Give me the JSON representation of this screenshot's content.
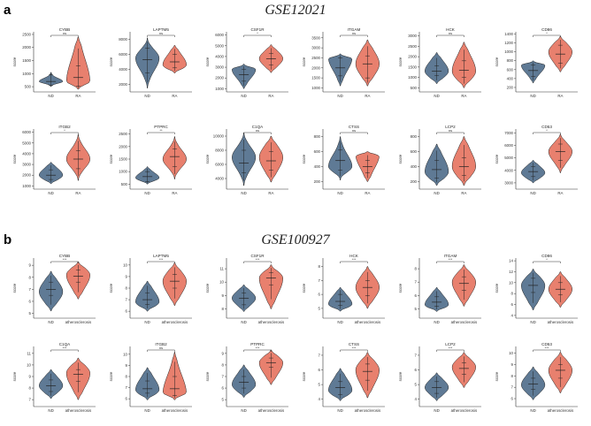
{
  "figure": {
    "panel_a_label": "a",
    "panel_b_label": "b",
    "panel_a_title": "GSE12021",
    "panel_b_title": "GSE100927",
    "y_axis_label": "score"
  },
  "colors": {
    "control": "#5f7a95",
    "case": "#e8806e",
    "outline": "#222222"
  },
  "chart_data": [
    {
      "panel": "a",
      "type": "violin",
      "title": "CYBB",
      "categories": [
        "ND",
        "RA"
      ],
      "significance": "ns",
      "yticks": [
        500,
        1000,
        1500,
        2000,
        2500
      ],
      "ylim": [
        300,
        2600
      ],
      "groups": [
        {
          "min": 500,
          "q1": 550,
          "median": 700,
          "q3": 950,
          "max": 1050,
          "peak": 700,
          "spread": 0.35
        },
        {
          "min": 400,
          "q1": 520,
          "median": 850,
          "q3": 1300,
          "max": 2400,
          "peak": 650,
          "spread": 0.5
        }
      ]
    },
    {
      "panel": "a",
      "type": "violin",
      "title": "LAPTM5",
      "categories": [
        "ND",
        "RA"
      ],
      "significance": "ns",
      "yticks": [
        2000,
        4000,
        6000,
        8000
      ],
      "ylim": [
        1000,
        9000
      ],
      "groups": [
        {
          "min": 1500,
          "q1": 3500,
          "median": 5300,
          "q3": 6800,
          "max": 8200,
          "peak": 5500,
          "spread": 0.4
        },
        {
          "min": 3500,
          "q1": 4200,
          "median": 5000,
          "q3": 6000,
          "max": 7200,
          "peak": 4600,
          "spread": 0.5
        }
      ]
    },
    {
      "panel": "a",
      "type": "violin",
      "title": "CSF1R",
      "categories": [
        "ND",
        "RA"
      ],
      "significance": "*",
      "yticks": [
        1000,
        2000,
        3000,
        4000,
        5000,
        6000
      ],
      "ylim": [
        700,
        6300
      ],
      "groups": [
        {
          "min": 1000,
          "q1": 1700,
          "median": 2300,
          "q3": 2800,
          "max": 3300,
          "peak": 2800,
          "spread": 0.45
        },
        {
          "min": 2500,
          "q1": 3200,
          "median": 3800,
          "q3": 4300,
          "max": 5100,
          "peak": 3800,
          "spread": 0.5
        }
      ]
    },
    {
      "panel": "a",
      "type": "violin",
      "title": "ITGAM",
      "categories": [
        "ND",
        "RA"
      ],
      "significance": "ns",
      "yticks": [
        1000,
        1500,
        2000,
        2500,
        3000,
        3500
      ],
      "ylim": [
        800,
        3800
      ],
      "groups": [
        {
          "min": 1100,
          "q1": 1600,
          "median": 2000,
          "q3": 2500,
          "max": 2700,
          "peak": 2500,
          "spread": 0.45
        },
        {
          "min": 1100,
          "q1": 1500,
          "median": 2200,
          "q3": 2600,
          "max": 3400,
          "peak": 2200,
          "spread": 0.5
        }
      ]
    },
    {
      "panel": "a",
      "type": "violin",
      "title": "HCK",
      "categories": [
        "ND",
        "RA"
      ],
      "significance": "ns",
      "yticks": [
        500,
        1000,
        1500,
        2000,
        2500,
        3000
      ],
      "ylim": [
        300,
        3200
      ],
      "groups": [
        {
          "min": 700,
          "q1": 1100,
          "median": 1300,
          "q3": 1550,
          "max": 2200,
          "peak": 1300,
          "spread": 0.5
        },
        {
          "min": 500,
          "q1": 1000,
          "median": 1350,
          "q3": 1800,
          "max": 2700,
          "peak": 1300,
          "spread": 0.5
        }
      ]
    },
    {
      "panel": "a",
      "type": "violin",
      "title": "CD86",
      "categories": [
        "ND",
        "RA"
      ],
      "significance": "*",
      "yticks": [
        200,
        400,
        600,
        800,
        1000,
        1200,
        1400
      ],
      "ylim": [
        100,
        1450
      ],
      "groups": [
        {
          "min": 300,
          "q1": 450,
          "median": 580,
          "q3": 700,
          "max": 800,
          "peak": 700,
          "spread": 0.45
        },
        {
          "min": 550,
          "q1": 750,
          "median": 950,
          "q3": 1150,
          "max": 1350,
          "peak": 1000,
          "spread": 0.5
        }
      ]
    },
    {
      "panel": "a",
      "type": "violin",
      "title": "ITGB2",
      "categories": [
        "ND",
        "RA"
      ],
      "significance": "*",
      "yticks": [
        1000,
        2000,
        3000,
        4000,
        5000,
        6000
      ],
      "ylim": [
        700,
        6300
      ],
      "groups": [
        {
          "min": 1200,
          "q1": 1600,
          "median": 2000,
          "q3": 2500,
          "max": 3200,
          "peak": 2000,
          "spread": 0.5
        },
        {
          "min": 1500,
          "q1": 2600,
          "median": 3500,
          "q3": 4300,
          "max": 5800,
          "peak": 3500,
          "spread": 0.4
        }
      ]
    },
    {
      "panel": "a",
      "type": "violin",
      "title": "PTPRC",
      "categories": [
        "ND",
        "RA"
      ],
      "significance": "**",
      "yticks": [
        500,
        1000,
        1500,
        2000,
        2500
      ],
      "ylim": [
        300,
        2700
      ],
      "groups": [
        {
          "min": 500,
          "q1": 600,
          "median": 800,
          "q3": 1000,
          "max": 1200,
          "peak": 750,
          "spread": 0.45
        },
        {
          "min": 700,
          "q1": 1200,
          "median": 1600,
          "q3": 1900,
          "max": 2400,
          "peak": 1500,
          "spread": 0.4
        }
      ]
    },
    {
      "panel": "a",
      "type": "violin",
      "title": "C1QA",
      "categories": [
        "ND",
        "RA"
      ],
      "significance": "ns",
      "yticks": [
        4000,
        6000,
        8000,
        10000
      ],
      "ylim": [
        2500,
        11000
      ],
      "groups": [
        {
          "min": 3000,
          "q1": 4800,
          "median": 6200,
          "q3": 8000,
          "max": 10500,
          "peak": 7000,
          "spread": 0.4
        },
        {
          "min": 3500,
          "q1": 5200,
          "median": 6500,
          "q3": 7800,
          "max": 10000,
          "peak": 7000,
          "spread": 0.5
        }
      ]
    },
    {
      "panel": "a",
      "type": "violin",
      "title": "CTSS",
      "categories": [
        "ND",
        "RA"
      ],
      "significance": "ns",
      "yticks": [
        200,
        400,
        600,
        800
      ],
      "ylim": [
        100,
        900
      ],
      "groups": [
        {
          "min": 220,
          "q1": 350,
          "median": 480,
          "q3": 620,
          "max": 800,
          "peak": 400,
          "spread": 0.4
        },
        {
          "min": 200,
          "q1": 320,
          "median": 400,
          "q3": 480,
          "max": 600,
          "peak": 560,
          "spread": 0.5
        }
      ]
    },
    {
      "panel": "a",
      "type": "violin",
      "title": "LCP2",
      "categories": [
        "ND",
        "RA"
      ],
      "significance": "ns",
      "yticks": [
        200,
        400,
        600,
        800
      ],
      "ylim": [
        100,
        900
      ],
      "groups": [
        {
          "min": 150,
          "q1": 250,
          "median": 360,
          "q3": 480,
          "max": 700,
          "peak": 330,
          "spread": 0.5
        },
        {
          "min": 150,
          "q1": 280,
          "median": 400,
          "q3": 520,
          "max": 800,
          "peak": 400,
          "spread": 0.5
        }
      ]
    },
    {
      "panel": "a",
      "type": "violin",
      "title": "CD53",
      "categories": [
        "ND",
        "RA"
      ],
      "significance": "*",
      "yticks": [
        3000,
        4000,
        5000,
        6000,
        7000
      ],
      "ylim": [
        2500,
        7300
      ],
      "groups": [
        {
          "min": 3000,
          "q1": 3500,
          "median": 3900,
          "q3": 4300,
          "max": 4800,
          "peak": 3800,
          "spread": 0.5
        },
        {
          "min": 3800,
          "q1": 4800,
          "median": 5500,
          "q3": 6100,
          "max": 6900,
          "peak": 5500,
          "spread": 0.45
        }
      ]
    },
    {
      "panel": "b",
      "type": "violin",
      "title": "CYBB",
      "categories": [
        "ND",
        "atherosclerosis"
      ],
      "significance": "***",
      "yticks": [
        5,
        6,
        7,
        8,
        9
      ],
      "ylim": [
        4.6,
        9.6
      ],
      "groups": [
        {
          "min": 5.2,
          "q1": 6.5,
          "median": 7.0,
          "q3": 7.6,
          "max": 8.5,
          "peak": 6.8,
          "spread": 0.5
        },
        {
          "min": 6.2,
          "q1": 7.6,
          "median": 8.1,
          "q3": 8.6,
          "max": 9.3,
          "peak": 8.2,
          "spread": 0.5
        }
      ]
    },
    {
      "panel": "b",
      "type": "violin",
      "title": "LAPTM5",
      "categories": [
        "ND",
        "atherosclerosis"
      ],
      "significance": "***",
      "yticks": [
        6,
        7,
        8,
        9,
        10
      ],
      "ylim": [
        5.4,
        10.6
      ],
      "groups": [
        {
          "min": 6.0,
          "q1": 6.6,
          "median": 7.0,
          "q3": 7.6,
          "max": 8.6,
          "peak": 6.8,
          "spread": 0.5
        },
        {
          "min": 6.5,
          "q1": 8.0,
          "median": 8.6,
          "q3": 9.2,
          "max": 10.2,
          "peak": 8.6,
          "spread": 0.5
        }
      ]
    },
    {
      "panel": "b",
      "type": "violin",
      "title": "CSF1R",
      "categories": [
        "ND",
        "atherosclerosis"
      ],
      "significance": "***",
      "yticks": [
        8,
        9,
        10,
        11
      ],
      "ylim": [
        7.3,
        11.8
      ],
      "groups": [
        {
          "min": 7.8,
          "q1": 8.3,
          "median": 8.8,
          "q3": 9.2,
          "max": 9.8,
          "peak": 8.8,
          "spread": 0.5
        },
        {
          "min": 8.0,
          "q1": 9.8,
          "median": 10.3,
          "q3": 10.7,
          "max": 11.3,
          "peak": 10.3,
          "spread": 0.5
        }
      ]
    },
    {
      "panel": "b",
      "type": "violin",
      "title": "HCK",
      "categories": [
        "ND",
        "atherosclerosis"
      ],
      "significance": "***",
      "yticks": [
        5,
        6,
        7,
        8
      ],
      "ylim": [
        4.3,
        8.6
      ],
      "groups": [
        {
          "min": 4.8,
          "q1": 5.2,
          "median": 5.5,
          "q3": 6.0,
          "max": 6.5,
          "peak": 5.3,
          "spread": 0.5
        },
        {
          "min": 5.0,
          "q1": 5.9,
          "median": 6.5,
          "q3": 7.0,
          "max": 8.0,
          "peak": 6.5,
          "spread": 0.5
        }
      ]
    },
    {
      "panel": "b",
      "type": "violin",
      "title": "ITGAM",
      "categories": [
        "ND",
        "atherosclerosis"
      ],
      "significance": "***",
      "yticks": [
        5,
        6,
        7,
        8
      ],
      "ylim": [
        4.3,
        8.8
      ],
      "groups": [
        {
          "min": 4.8,
          "q1": 5.2,
          "median": 5.5,
          "q3": 5.9,
          "max": 6.6,
          "peak": 5.3,
          "spread": 0.5
        },
        {
          "min": 5.2,
          "q1": 6.4,
          "median": 6.9,
          "q3": 7.4,
          "max": 8.3,
          "peak": 7.0,
          "spread": 0.5
        }
      ]
    },
    {
      "panel": "b",
      "type": "violin",
      "title": "CD86",
      "categories": [
        "ND",
        "atherosclerosis"
      ],
      "significance": "*",
      "yticks": [
        4,
        6,
        8,
        10,
        12,
        14
      ],
      "ylim": [
        3.5,
        14.5
      ],
      "groups": [
        {
          "min": 5.0,
          "q1": 8.2,
          "median": 9.5,
          "q3": 10.8,
          "max": 12.5,
          "peak": 9.5,
          "spread": 0.5
        },
        {
          "min": 5.5,
          "q1": 7.8,
          "median": 8.8,
          "q3": 10.0,
          "max": 12.0,
          "peak": 8.8,
          "spread": 0.5
        }
      ]
    },
    {
      "panel": "b",
      "type": "violin",
      "title": "C1QA",
      "categories": [
        "ND",
        "atherosclerosis"
      ],
      "significance": "***",
      "yticks": [
        7,
        8,
        9,
        10,
        11
      ],
      "ylim": [
        6.4,
        11.6
      ],
      "groups": [
        {
          "min": 7.1,
          "q1": 7.7,
          "median": 8.2,
          "q3": 8.7,
          "max": 9.6,
          "peak": 8.2,
          "spread": 0.5
        },
        {
          "min": 7.0,
          "q1": 8.6,
          "median": 9.2,
          "q3": 9.6,
          "max": 10.6,
          "peak": 9.3,
          "spread": 0.5
        }
      ]
    },
    {
      "panel": "b",
      "type": "violin",
      "title": "ITGB2",
      "categories": [
        "ND",
        "atherosclerosis"
      ],
      "significance": "ns",
      "yticks": [
        6,
        7,
        8,
        9,
        10
      ],
      "ylim": [
        5.3,
        10.7
      ],
      "groups": [
        {
          "min": 5.9,
          "q1": 6.5,
          "median": 6.9,
          "q3": 7.6,
          "max": 8.8,
          "peak": 6.8,
          "spread": 0.5
        },
        {
          "min": 5.9,
          "q1": 6.3,
          "median": 6.9,
          "q3": 8.0,
          "max": 10.2,
          "peak": 6.4,
          "spread": 0.45
        }
      ]
    },
    {
      "panel": "b",
      "type": "violin",
      "title": "PTPRC",
      "categories": [
        "ND",
        "atherosclerosis"
      ],
      "significance": "***",
      "yticks": [
        5,
        6,
        7,
        8,
        9
      ],
      "ylim": [
        4.4,
        9.6
      ],
      "groups": [
        {
          "min": 5.2,
          "q1": 6.0,
          "median": 6.5,
          "q3": 7.0,
          "max": 8.0,
          "peak": 6.3,
          "spread": 0.5
        },
        {
          "min": 6.3,
          "q1": 7.8,
          "median": 8.2,
          "q3": 8.6,
          "max": 9.3,
          "peak": 8.2,
          "spread": 0.5
        }
      ]
    },
    {
      "panel": "b",
      "type": "violin",
      "title": "CTSS",
      "categories": [
        "ND",
        "atherosclerosis"
      ],
      "significance": "***",
      "yticks": [
        4,
        5,
        6,
        7
      ],
      "ylim": [
        3.5,
        7.6
      ],
      "groups": [
        {
          "min": 3.9,
          "q1": 4.3,
          "median": 4.8,
          "q3": 5.2,
          "max": 6.1,
          "peak": 4.6,
          "spread": 0.5
        },
        {
          "min": 4.1,
          "q1": 5.3,
          "median": 5.9,
          "q3": 6.4,
          "max": 7.2,
          "peak": 6.0,
          "spread": 0.5
        }
      ]
    },
    {
      "panel": "b",
      "type": "violin",
      "title": "LCP2",
      "categories": [
        "ND",
        "atherosclerosis"
      ],
      "significance": "***",
      "yticks": [
        4,
        5,
        6,
        7
      ],
      "ylim": [
        3.5,
        7.6
      ],
      "groups": [
        {
          "min": 3.9,
          "q1": 4.4,
          "median": 4.8,
          "q3": 5.2,
          "max": 5.8,
          "peak": 4.8,
          "spread": 0.5
        },
        {
          "min": 4.8,
          "q1": 5.7,
          "median": 6.1,
          "q3": 6.5,
          "max": 7.2,
          "peak": 6.2,
          "spread": 0.5
        }
      ]
    },
    {
      "panel": "b",
      "type": "violin",
      "title": "CD53",
      "categories": [
        "ND",
        "atherosclerosis"
      ],
      "significance": "***",
      "yticks": [
        6,
        7,
        8,
        9,
        10
      ],
      "ylim": [
        5.3,
        10.6
      ],
      "groups": [
        {
          "min": 5.9,
          "q1": 6.8,
          "median": 7.3,
          "q3": 7.8,
          "max": 8.8,
          "peak": 7.2,
          "spread": 0.5
        },
        {
          "min": 6.5,
          "q1": 7.8,
          "median": 8.5,
          "q3": 9.0,
          "max": 10.1,
          "peak": 8.5,
          "spread": 0.5
        }
      ]
    }
  ]
}
